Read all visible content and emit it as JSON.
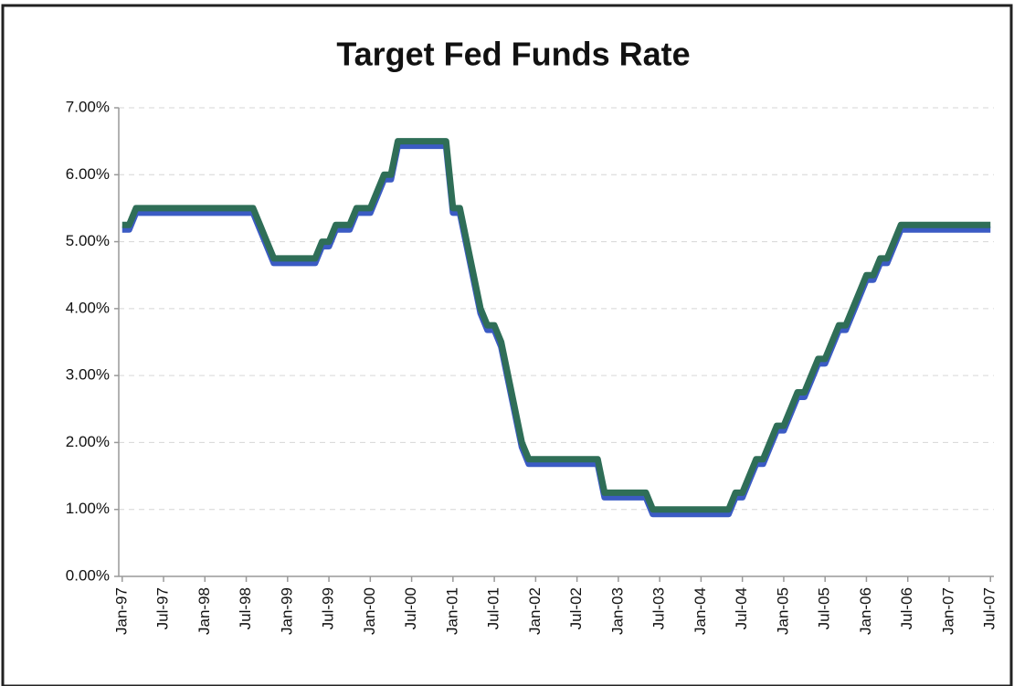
{
  "chart_data": {
    "type": "line",
    "title": "Target Fed Funds Rate",
    "categories": [
      "Jan-97",
      null,
      null,
      null,
      null,
      null,
      "Jul-97",
      null,
      null,
      null,
      null,
      null,
      "Jan-98",
      null,
      null,
      null,
      null,
      null,
      "Jul-98",
      null,
      null,
      null,
      null,
      null,
      "Jan-99",
      null,
      null,
      null,
      null,
      null,
      "Jul-99",
      null,
      null,
      null,
      null,
      null,
      "Jan-00",
      null,
      null,
      null,
      null,
      null,
      "Jul-00",
      null,
      null,
      null,
      null,
      null,
      "Jan-01",
      null,
      null,
      null,
      null,
      null,
      "Jul-01",
      null,
      null,
      null,
      null,
      null,
      "Jan-02",
      null,
      null,
      null,
      null,
      null,
      "Jul-02",
      null,
      null,
      null,
      null,
      null,
      "Jan-03",
      null,
      null,
      null,
      null,
      null,
      "Jul-03",
      null,
      null,
      null,
      null,
      null,
      "Jan-04",
      null,
      null,
      null,
      null,
      null,
      "Jul-04",
      null,
      null,
      null,
      null,
      null,
      "Jan-05",
      null,
      null,
      null,
      null,
      null,
      "Jul-05",
      null,
      null,
      null,
      null,
      null,
      "Jan-06",
      null,
      null,
      null,
      null,
      null,
      "Jul-06",
      null,
      null,
      null,
      null,
      null,
      "Jan-07",
      null,
      null,
      null,
      null,
      null,
      "Jul-07"
    ],
    "values": [
      5.25,
      5.25,
      5.5,
      5.5,
      5.5,
      5.5,
      5.5,
      5.5,
      5.5,
      5.5,
      5.5,
      5.5,
      5.5,
      5.5,
      5.5,
      5.5,
      5.5,
      5.5,
      5.5,
      5.5,
      5.25,
      5.0,
      4.75,
      4.75,
      4.75,
      4.75,
      4.75,
      4.75,
      4.75,
      5.0,
      5.0,
      5.25,
      5.25,
      5.25,
      5.5,
      5.5,
      5.5,
      5.75,
      6.0,
      6.0,
      6.5,
      6.5,
      6.5,
      6.5,
      6.5,
      6.5,
      6.5,
      6.5,
      5.5,
      5.5,
      5.0,
      4.5,
      4.0,
      3.75,
      3.75,
      3.5,
      3.0,
      2.5,
      2.0,
      1.75,
      1.75,
      1.75,
      1.75,
      1.75,
      1.75,
      1.75,
      1.75,
      1.75,
      1.75,
      1.75,
      1.25,
      1.25,
      1.25,
      1.25,
      1.25,
      1.25,
      1.25,
      1.0,
      1.0,
      1.0,
      1.0,
      1.0,
      1.0,
      1.0,
      1.0,
      1.0,
      1.0,
      1.0,
      1.0,
      1.25,
      1.25,
      1.5,
      1.75,
      1.75,
      2.0,
      2.25,
      2.25,
      2.5,
      2.75,
      2.75,
      3.0,
      3.25,
      3.25,
      3.5,
      3.75,
      3.75,
      4.0,
      4.25,
      4.5,
      4.5,
      4.75,
      4.75,
      5.0,
      5.25,
      5.25,
      5.25,
      5.25,
      5.25,
      5.25,
      5.25,
      5.25,
      5.25,
      5.25,
      5.25,
      5.25,
      5.25,
      5.25
    ],
    "color": "#2f6e57",
    "ylim": [
      0,
      7
    ],
    "yticks": [
      {
        "value": 0,
        "label": "0.00%"
      },
      {
        "value": 1,
        "label": "1.00%"
      },
      {
        "value": 2,
        "label": "2.00%"
      },
      {
        "value": 3,
        "label": "3.00%"
      },
      {
        "value": 4,
        "label": "4.00%"
      },
      {
        "value": 5,
        "label": "5.00%"
      },
      {
        "value": 6,
        "label": "6.00%"
      },
      {
        "value": 7,
        "label": "7.00%"
      }
    ],
    "grid": true
  }
}
